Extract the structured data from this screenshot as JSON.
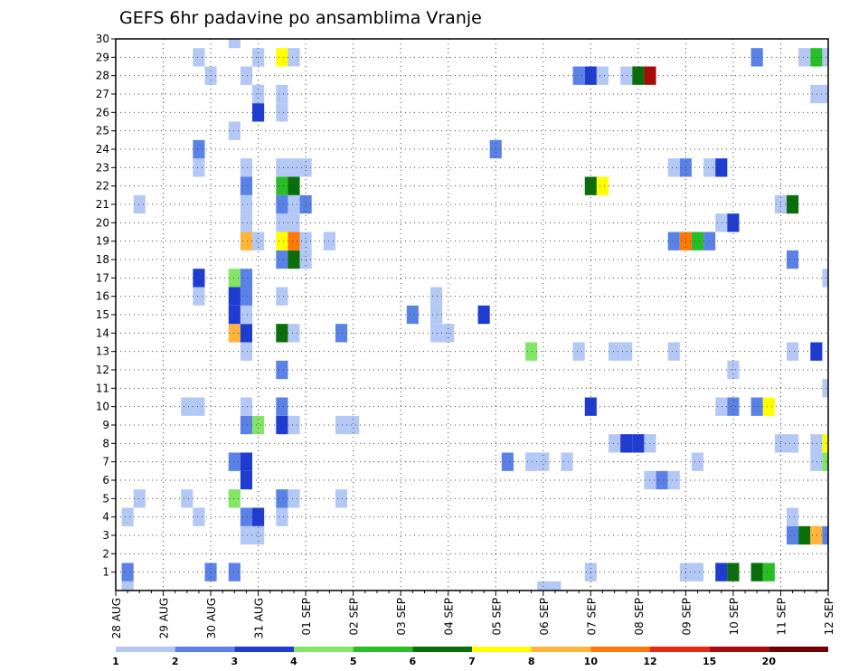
{
  "chart_data": {
    "type": "heatmap",
    "title": "GEFS 6hr padavine po ansamblima Vranje",
    "xlabel": "",
    "ylabel": "",
    "x_axis": {
      "ticks": [
        "28 AUG",
        "29 AUG",
        "30 AUG",
        "31 AUG",
        "01 SEP",
        "02 SEP",
        "03 SEP",
        "04 SEP",
        "05 SEP",
        "06 SEP",
        "07 SEP",
        "08 SEP",
        "09 SEP",
        "10 SEP",
        "11 SEP",
        "12 SEP"
      ],
      "steps_per_day": 4,
      "step_hours": 6,
      "total_steps": 61
    },
    "y_axis": {
      "label_values": [
        1,
        2,
        3,
        4,
        5,
        6,
        7,
        8,
        9,
        10,
        11,
        12,
        13,
        14,
        15,
        16,
        17,
        18,
        19,
        20,
        21,
        22,
        23,
        24,
        25,
        26,
        27,
        28,
        29,
        30
      ],
      "range": [
        0,
        30
      ]
    },
    "grid": true,
    "legend": {
      "placement": "bottom",
      "boundaries": [
        "1",
        "2",
        "3",
        "4",
        "5",
        "6",
        "7",
        "8",
        "10",
        "12",
        "15",
        "20"
      ],
      "colors": [
        "#b4c8f5",
        "#5a82e6",
        "#1e3cd2",
        "#82e664",
        "#28be28",
        "#0a6e0a",
        "#ffff00",
        "#ffb43c",
        "#ff780a",
        "#e62814",
        "#aa0a0a",
        "#6e0000"
      ]
    },
    "member_rows": {
      "0": [
        [
          1,
          0
        ],
        [
          36,
          0
        ],
        [
          37,
          0
        ]
      ],
      "1": [
        [
          1,
          1
        ],
        [
          8,
          1
        ],
        [
          10,
          1
        ],
        [
          40,
          0
        ],
        [
          48,
          0
        ],
        [
          49,
          0
        ],
        [
          51,
          2
        ],
        [
          52,
          5
        ],
        [
          54,
          5
        ],
        [
          55,
          4
        ]
      ],
      "2": [],
      "3": [
        [
          11,
          0
        ],
        [
          12,
          0
        ],
        [
          57,
          1
        ],
        [
          58,
          5
        ],
        [
          59,
          7
        ],
        [
          60,
          1
        ]
      ],
      "4": [
        [
          1,
          0
        ],
        [
          7,
          0
        ],
        [
          11,
          1
        ],
        [
          12,
          2
        ],
        [
          14,
          0
        ],
        [
          57,
          0
        ]
      ],
      "5": [
        [
          2,
          0
        ],
        [
          6,
          0
        ],
        [
          10,
          3
        ],
        [
          14,
          1
        ],
        [
          15,
          0
        ],
        [
          19,
          0
        ]
      ],
      "6": [
        [
          11,
          2
        ],
        [
          45,
          0
        ],
        [
          46,
          1
        ],
        [
          47,
          0
        ]
      ],
      "7": [
        [
          10,
          1
        ],
        [
          11,
          2
        ],
        [
          33,
          1
        ],
        [
          35,
          0
        ],
        [
          36,
          0
        ],
        [
          38,
          0
        ],
        [
          49,
          0
        ],
        [
          59,
          0
        ],
        [
          60,
          3
        ]
      ],
      "8": [
        [
          42,
          0
        ],
        [
          43,
          2
        ],
        [
          44,
          2
        ],
        [
          45,
          0
        ],
        [
          56,
          0
        ],
        [
          57,
          0
        ],
        [
          59,
          0
        ],
        [
          60,
          6
        ],
        [
          61,
          1
        ]
      ],
      "9": [
        [
          11,
          1
        ],
        [
          12,
          3
        ],
        [
          14,
          2
        ],
        [
          15,
          0
        ],
        [
          19,
          0
        ],
        [
          20,
          0
        ],
        [
          61,
          5
        ]
      ],
      "10": [
        [
          6,
          0
        ],
        [
          7,
          0
        ],
        [
          11,
          0
        ],
        [
          14,
          1
        ],
        [
          40,
          2
        ],
        [
          51,
          0
        ],
        [
          52,
          1
        ],
        [
          54,
          1
        ],
        [
          55,
          6
        ]
      ],
      "11": [
        [
          60,
          0
        ],
        [
          61,
          3
        ]
      ],
      "12": [
        [
          14,
          1
        ],
        [
          52,
          0
        ]
      ],
      "13": [
        [
          11,
          0
        ],
        [
          35,
          3
        ],
        [
          39,
          0
        ],
        [
          42,
          0
        ],
        [
          43,
          0
        ],
        [
          47,
          0
        ],
        [
          57,
          0
        ],
        [
          59,
          2
        ]
      ],
      "14": [
        [
          10,
          7
        ],
        [
          11,
          2
        ],
        [
          14,
          5
        ],
        [
          15,
          0
        ],
        [
          19,
          1
        ],
        [
          27,
          0
        ],
        [
          28,
          0
        ]
      ],
      "15": [
        [
          10,
          2
        ],
        [
          11,
          0
        ],
        [
          25,
          1
        ],
        [
          27,
          0
        ],
        [
          31,
          2
        ]
      ],
      "16": [
        [
          7,
          0
        ],
        [
          10,
          2
        ],
        [
          11,
          1
        ],
        [
          14,
          0
        ],
        [
          27,
          0
        ]
      ],
      "17": [
        [
          7,
          2
        ],
        [
          10,
          3
        ],
        [
          11,
          1
        ],
        [
          60,
          0
        ],
        [
          61,
          0
        ]
      ],
      "18": [
        [
          14,
          1
        ],
        [
          15,
          5
        ],
        [
          16,
          0
        ],
        [
          57,
          1
        ],
        [
          61,
          1
        ]
      ],
      "19": [
        [
          11,
          7
        ],
        [
          12,
          0
        ],
        [
          14,
          6
        ],
        [
          15,
          8
        ],
        [
          16,
          0
        ],
        [
          18,
          0
        ],
        [
          47,
          1
        ],
        [
          48,
          8
        ],
        [
          49,
          4
        ],
        [
          50,
          1
        ]
      ],
      "20": [
        [
          11,
          0
        ],
        [
          14,
          0
        ],
        [
          15,
          0
        ],
        [
          51,
          0
        ],
        [
          52,
          2
        ]
      ],
      "21": [
        [
          2,
          0
        ],
        [
          11,
          0
        ],
        [
          14,
          1
        ],
        [
          15,
          0
        ],
        [
          16,
          1
        ],
        [
          56,
          0
        ],
        [
          57,
          5
        ]
      ],
      "22": [
        [
          11,
          1
        ],
        [
          14,
          4
        ],
        [
          15,
          5
        ],
        [
          40,
          5
        ],
        [
          41,
          6
        ]
      ],
      "23": [
        [
          7,
          0
        ],
        [
          11,
          0
        ],
        [
          14,
          0
        ],
        [
          15,
          0
        ],
        [
          16,
          0
        ],
        [
          47,
          0
        ],
        [
          48,
          1
        ],
        [
          50,
          0
        ],
        [
          51,
          2
        ]
      ],
      "24": [
        [
          7,
          1
        ],
        [
          32,
          1
        ]
      ],
      "25": [
        [
          10,
          0
        ]
      ],
      "26": [
        [
          12,
          2
        ],
        [
          14,
          0
        ]
      ],
      "27": [
        [
          12,
          0
        ],
        [
          14,
          0
        ],
        [
          59,
          0
        ],
        [
          60,
          0
        ]
      ],
      "28": [
        [
          8,
          0
        ],
        [
          11,
          0
        ],
        [
          39,
          1
        ],
        [
          40,
          2
        ],
        [
          41,
          0
        ],
        [
          43,
          0
        ],
        [
          44,
          5
        ],
        [
          45,
          10
        ]
      ],
      "29": [
        [
          7,
          0
        ],
        [
          12,
          0
        ],
        [
          14,
          6
        ],
        [
          15,
          0
        ],
        [
          54,
          1
        ],
        [
          58,
          0
        ],
        [
          59,
          4
        ],
        [
          60,
          0
        ]
      ],
      "30": [
        [
          10,
          0
        ]
      ]
    }
  }
}
